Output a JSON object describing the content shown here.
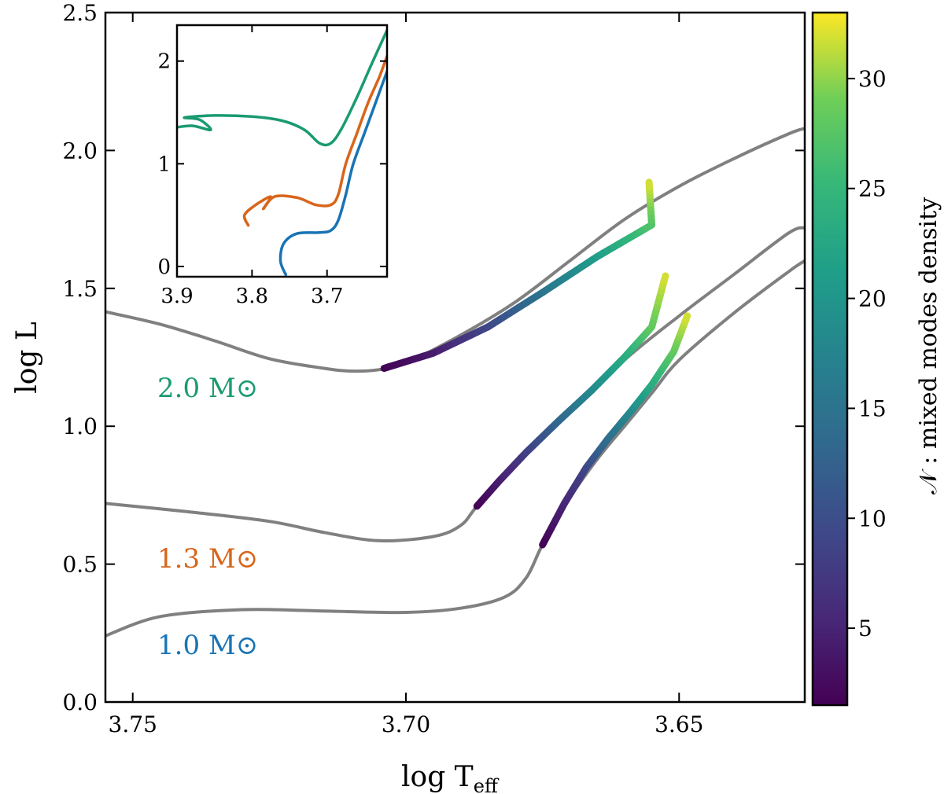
{
  "chart_data": {
    "type": "line",
    "title": "",
    "xlabel": "log T",
    "xlabel_sub": "eff",
    "ylabel": "log L",
    "xlim": [
      3.755,
      3.627
    ],
    "ylim": [
      0.0,
      2.5
    ],
    "xticks": [
      "3.75",
      "3.70",
      "3.65"
    ],
    "yticks": [
      "0.0",
      "0.5",
      "1.0",
      "1.5",
      "2.0",
      "2.5"
    ],
    "colorbar": {
      "label": "𝒩 : mixed modes density",
      "range": [
        1.5,
        33
      ],
      "ticks": [
        "5",
        "10",
        "15",
        "20",
        "25",
        "30"
      ],
      "colormap": "viridis"
    },
    "series": [
      {
        "name": "2.0 M⊙",
        "label_color": "#1a9a72",
        "track": [
          [
            3.755,
            1.415
          ],
          [
            3.745,
            1.37
          ],
          [
            3.735,
            1.31
          ],
          [
            3.725,
            1.245
          ],
          [
            3.715,
            1.21
          ],
          [
            3.71,
            1.2
          ],
          [
            3.705,
            1.205
          ],
          [
            3.7,
            1.23
          ],
          [
            3.69,
            1.33
          ],
          [
            3.68,
            1.45
          ],
          [
            3.67,
            1.6
          ],
          [
            3.66,
            1.75
          ],
          [
            3.65,
            1.87
          ],
          [
            3.64,
            1.97
          ],
          [
            3.63,
            2.06
          ],
          [
            3.627,
            2.08
          ]
        ],
        "mixed_modes": [
          [
            3.704,
            1.21,
            1.5
          ],
          [
            3.695,
            1.265,
            4
          ],
          [
            3.685,
            1.36,
            9
          ],
          [
            3.675,
            1.485,
            15
          ],
          [
            3.665,
            1.615,
            21
          ],
          [
            3.655,
            1.73,
            27
          ],
          [
            3.6555,
            1.885,
            32
          ]
        ]
      },
      {
        "name": "1.3 M⊙",
        "label_color": "#d8651a",
        "track": [
          [
            3.755,
            0.72
          ],
          [
            3.74,
            0.69
          ],
          [
            3.725,
            0.655
          ],
          [
            3.715,
            0.615
          ],
          [
            3.705,
            0.585
          ],
          [
            3.695,
            0.6
          ],
          [
            3.69,
            0.64
          ],
          [
            3.687,
            0.71
          ],
          [
            3.68,
            0.87
          ],
          [
            3.67,
            1.05
          ],
          [
            3.66,
            1.24
          ],
          [
            3.65,
            1.4
          ],
          [
            3.64,
            1.55
          ],
          [
            3.63,
            1.7
          ],
          [
            3.627,
            1.72
          ]
        ],
        "mixed_modes": [
          [
            3.687,
            0.71,
            1.5
          ],
          [
            3.683,
            0.8,
            4
          ],
          [
            3.678,
            0.905,
            8
          ],
          [
            3.672,
            1.02,
            13
          ],
          [
            3.666,
            1.13,
            18
          ],
          [
            3.66,
            1.25,
            23
          ],
          [
            3.655,
            1.36,
            28
          ],
          [
            3.6525,
            1.545,
            32
          ]
        ]
      },
      {
        "name": "1.0 M⊙",
        "label_color": "#1874b5",
        "track": [
          [
            3.755,
            0.24
          ],
          [
            3.745,
            0.31
          ],
          [
            3.73,
            0.335
          ],
          [
            3.715,
            0.33
          ],
          [
            3.7,
            0.325
          ],
          [
            3.69,
            0.34
          ],
          [
            3.682,
            0.38
          ],
          [
            3.678,
            0.45
          ],
          [
            3.675,
            0.57
          ],
          [
            3.67,
            0.74
          ],
          [
            3.665,
            0.88
          ],
          [
            3.66,
            1.0
          ],
          [
            3.655,
            1.12
          ],
          [
            3.65,
            1.24
          ],
          [
            3.64,
            1.41
          ],
          [
            3.63,
            1.56
          ],
          [
            3.627,
            1.6
          ]
        ],
        "mixed_modes": [
          [
            3.675,
            0.57,
            1.5
          ],
          [
            3.671,
            0.72,
            5
          ],
          [
            3.667,
            0.85,
            9
          ],
          [
            3.663,
            0.955,
            14
          ],
          [
            3.659,
            1.05,
            18
          ],
          [
            3.655,
            1.15,
            23
          ],
          [
            3.651,
            1.27,
            28
          ],
          [
            3.6485,
            1.4,
            32
          ]
        ]
      }
    ],
    "inset": {
      "xlim": [
        3.9,
        3.62
      ],
      "ylim": [
        -0.1,
        2.35
      ],
      "xticks": [
        "3.9",
        "3.8",
        "3.7"
      ],
      "yticks": [
        "0",
        "1",
        "2"
      ],
      "series": [
        {
          "name": "2.0 M⊙",
          "color": "#1a9a72",
          "points": [
            [
              3.905,
              1.35
            ],
            [
              3.88,
              1.37
            ],
            [
              3.855,
              1.33
            ],
            [
              3.87,
              1.43
            ],
            [
              3.89,
              1.45
            ],
            [
              3.85,
              1.47
            ],
            [
              3.8,
              1.46
            ],
            [
              3.76,
              1.42
            ],
            [
              3.73,
              1.33
            ],
            [
              3.71,
              1.2
            ],
            [
              3.695,
              1.2
            ],
            [
              3.68,
              1.35
            ],
            [
              3.66,
              1.65
            ],
            [
              3.64,
              1.98
            ],
            [
              3.62,
              2.3
            ]
          ]
        },
        {
          "name": "1.3 M⊙",
          "color": "#d8651a",
          "points": [
            [
              3.805,
              0.4
            ],
            [
              3.81,
              0.5
            ],
            [
              3.795,
              0.6
            ],
            [
              3.775,
              0.68
            ],
            [
              3.785,
              0.56
            ],
            [
              3.77,
              0.68
            ],
            [
              3.74,
              0.67
            ],
            [
              3.715,
              0.6
            ],
            [
              3.695,
              0.6
            ],
            [
              3.685,
              0.7
            ],
            [
              3.675,
              1.0
            ],
            [
              3.66,
              1.3
            ],
            [
              3.645,
              1.6
            ],
            [
              3.63,
              1.85
            ],
            [
              3.62,
              2.05
            ]
          ]
        },
        {
          "name": "1.0 M⊙",
          "color": "#1874b5",
          "points": [
            [
              3.755,
              -0.08
            ],
            [
              3.762,
              0.05
            ],
            [
              3.758,
              0.22
            ],
            [
              3.74,
              0.32
            ],
            [
              3.71,
              0.33
            ],
            [
              3.695,
              0.35
            ],
            [
              3.685,
              0.45
            ],
            [
              3.675,
              0.7
            ],
            [
              3.665,
              1.0
            ],
            [
              3.65,
              1.3
            ],
            [
              3.635,
              1.6
            ],
            [
              3.62,
              1.9
            ]
          ]
        }
      ]
    }
  }
}
